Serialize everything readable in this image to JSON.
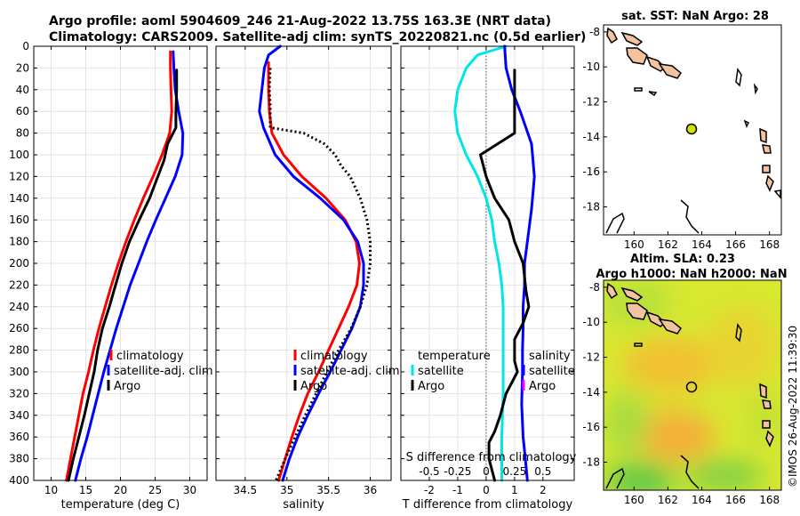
{
  "header": {
    "line1": "Argo profile: aoml 5904609_246 21-Aug-2022 13.75S 163.3E (NRT data)",
    "line2": "Climatology: CARS2009. Satellite-adj clim: synTS_20220821.nc (0.5d earlier)"
  },
  "colors": {
    "climatology": "#ff0000",
    "satellite": "#0000ff",
    "argo": "#000000",
    "temp_diff": "#00e5e5",
    "map_argo": "#d4e000"
  },
  "chart_data": [
    {
      "id": "temperature",
      "type": "line",
      "xlabel": "temperature (deg C)",
      "xlim": [
        7.5,
        32.5
      ],
      "xticks": [
        10,
        15,
        20,
        25,
        30
      ],
      "ylim": [
        0,
        400
      ],
      "yticks": [
        0,
        20,
        40,
        60,
        80,
        100,
        120,
        140,
        160,
        180,
        200,
        220,
        240,
        260,
        280,
        300,
        320,
        340,
        360,
        380,
        400
      ],
      "legend": [
        "climatology",
        "satellite-adj. clim",
        "Argo"
      ],
      "series": [
        {
          "name": "climatology",
          "color": "#ff0000",
          "dotted": false,
          "points": [
            [
              27.2,
              5
            ],
            [
              27.2,
              20
            ],
            [
              27.3,
              40
            ],
            [
              27.4,
              60
            ],
            [
              27.1,
              80
            ],
            [
              26.0,
              100
            ],
            [
              24.7,
              120
            ],
            [
              23.3,
              140
            ],
            [
              22.0,
              160
            ],
            [
              20.8,
              180
            ],
            [
              19.7,
              200
            ],
            [
              18.7,
              220
            ],
            [
              17.8,
              240
            ],
            [
              16.9,
              260
            ],
            [
              16.1,
              280
            ],
            [
              15.4,
              300
            ],
            [
              14.6,
              320
            ],
            [
              14.0,
              340
            ],
            [
              13.4,
              360
            ],
            [
              12.8,
              380
            ],
            [
              12.2,
              400
            ]
          ]
        },
        {
          "name": "satellite-adj. clim",
          "color": "#0000ff",
          "dotted": false,
          "points": [
            [
              27.6,
              5
            ],
            [
              27.7,
              20
            ],
            [
              27.9,
              40
            ],
            [
              28.4,
              60
            ],
            [
              29.0,
              80
            ],
            [
              28.9,
              100
            ],
            [
              27.9,
              120
            ],
            [
              26.5,
              140
            ],
            [
              25.1,
              160
            ],
            [
              23.8,
              180
            ],
            [
              22.6,
              200
            ],
            [
              21.4,
              220
            ],
            [
              20.4,
              240
            ],
            [
              19.4,
              260
            ],
            [
              18.5,
              280
            ],
            [
              17.6,
              300
            ],
            [
              16.8,
              320
            ],
            [
              16.0,
              340
            ],
            [
              15.2,
              360
            ],
            [
              14.3,
              380
            ],
            [
              13.5,
              400
            ]
          ]
        },
        {
          "name": "Argo",
          "color": "#000000",
          "dotted": false,
          "points": [
            [
              28.1,
              22
            ],
            [
              28.1,
              40
            ],
            [
              28.0,
              60
            ],
            [
              28.0,
              75
            ],
            [
              26.8,
              90
            ],
            [
              26.3,
              105
            ],
            [
              25.4,
              120
            ],
            [
              24.2,
              140
            ],
            [
              22.7,
              160
            ],
            [
              21.3,
              180
            ],
            [
              20.2,
              200
            ],
            [
              19.3,
              220
            ],
            [
              18.4,
              240
            ],
            [
              17.4,
              260
            ],
            [
              16.7,
              280
            ],
            [
              16.2,
              300
            ],
            [
              15.5,
              320
            ],
            [
              14.8,
              340
            ],
            [
              14.0,
              360
            ],
            [
              13.2,
              380
            ],
            [
              12.5,
              400
            ]
          ]
        }
      ]
    },
    {
      "id": "salinity",
      "type": "line",
      "xlabel": "salinity",
      "xlim": [
        34.15,
        36.25
      ],
      "xticks": [
        34.5,
        35,
        35.5,
        36
      ],
      "xtick_labels": [
        "34.5",
        "35",
        "35.5",
        "36"
      ],
      "ylim": [
        0,
        400
      ],
      "legend": [
        "climatology",
        "satellite-adj. clim",
        "Argo"
      ],
      "series": [
        {
          "name": "climatology",
          "color": "#ff0000",
          "dotted": false,
          "points": [
            [
              34.78,
              15
            ],
            [
              34.78,
              40
            ],
            [
              34.79,
              60
            ],
            [
              34.82,
              80
            ],
            [
              34.96,
              100
            ],
            [
              35.18,
              120
            ],
            [
              35.47,
              140
            ],
            [
              35.7,
              160
            ],
            [
              35.83,
              180
            ],
            [
              35.87,
              200
            ],
            [
              35.84,
              220
            ],
            [
              35.74,
              240
            ],
            [
              35.62,
              260
            ],
            [
              35.5,
              280
            ],
            [
              35.38,
              300
            ],
            [
              35.25,
              320
            ],
            [
              35.15,
              340
            ],
            [
              35.06,
              360
            ],
            [
              34.98,
              380
            ],
            [
              34.9,
              400
            ]
          ]
        },
        {
          "name": "satellite-adj. clim",
          "color": "#0000ff",
          "dotted": false,
          "points": [
            [
              34.92,
              0
            ],
            [
              34.78,
              8
            ],
            [
              34.73,
              20
            ],
            [
              34.7,
              40
            ],
            [
              34.67,
              60
            ],
            [
              34.72,
              75
            ],
            [
              34.86,
              100
            ],
            [
              35.08,
              120
            ],
            [
              35.4,
              140
            ],
            [
              35.68,
              160
            ],
            [
              35.85,
              180
            ],
            [
              35.92,
              200
            ],
            [
              35.92,
              220
            ],
            [
              35.88,
              240
            ],
            [
              35.78,
              260
            ],
            [
              35.65,
              280
            ],
            [
              35.52,
              300
            ],
            [
              35.38,
              320
            ],
            [
              35.25,
              340
            ],
            [
              35.13,
              360
            ],
            [
              35.03,
              380
            ],
            [
              34.95,
              400
            ]
          ]
        },
        {
          "name": "Argo",
          "color": "#000000",
          "dotted": true,
          "points": [
            [
              34.8,
              20
            ],
            [
              34.79,
              40
            ],
            [
              34.8,
              55
            ],
            [
              34.8,
              75
            ],
            [
              35.2,
              80
            ],
            [
              35.45,
              90
            ],
            [
              35.58,
              100
            ],
            [
              35.65,
              110
            ],
            [
              35.76,
              120
            ],
            [
              35.88,
              140
            ],
            [
              35.96,
              160
            ],
            [
              36.0,
              180
            ],
            [
              36.0,
              200
            ],
            [
              35.96,
              220
            ],
            [
              35.88,
              240
            ],
            [
              35.77,
              260
            ],
            [
              35.62,
              280
            ],
            [
              35.48,
              300
            ],
            [
              35.35,
              320
            ],
            [
              35.22,
              340
            ],
            [
              35.1,
              360
            ],
            [
              34.98,
              380
            ],
            [
              34.87,
              400
            ]
          ]
        }
      ]
    },
    {
      "id": "difference",
      "type": "line",
      "xlabel": "T difference from climatology",
      "top_label": "S difference from climatology",
      "xlim": [
        -3,
        3.1
      ],
      "xticks": [
        -2,
        -1,
        0,
        1,
        2
      ],
      "top_xticks": [
        -0.5,
        -0.25,
        0,
        0.25,
        0.5
      ],
      "top_xtick_labels": [
        "-0.5",
        "-0.25",
        "0",
        "0.25",
        "0.5"
      ],
      "ylim": [
        0,
        400
      ],
      "legend_temperature": [
        "temperature",
        "satellite",
        "Argo"
      ],
      "legend_salinity": [
        "salinity",
        "satellite",
        "Argo"
      ],
      "series": [
        {
          "name": "temperature satellite",
          "color": "#00e5e5",
          "dotted": false,
          "points": [
            [
              0.7,
              0
            ],
            [
              -0.3,
              8
            ],
            [
              -0.7,
              20
            ],
            [
              -1.0,
              40
            ],
            [
              -1.1,
              60
            ],
            [
              -1.0,
              80
            ],
            [
              -0.7,
              100
            ],
            [
              -0.3,
              120
            ],
            [
              0.0,
              140
            ],
            [
              0.2,
              160
            ],
            [
              0.3,
              180
            ],
            [
              0.45,
              200
            ],
            [
              0.55,
              220
            ],
            [
              0.6,
              240
            ],
            [
              0.6,
              280
            ],
            [
              0.6,
              320
            ],
            [
              0.55,
              360
            ],
            [
              0.55,
              400
            ]
          ]
        },
        {
          "name": "salinity satellite",
          "color": "#0000ff",
          "dotted": false,
          "points": [
            [
              0.65,
              0
            ],
            [
              0.7,
              20
            ],
            [
              0.9,
              40
            ],
            [
              1.2,
              60
            ],
            [
              1.6,
              90
            ],
            [
              1.7,
              120
            ],
            [
              1.6,
              150
            ],
            [
              1.45,
              180
            ],
            [
              1.35,
              200
            ],
            [
              1.35,
              220
            ],
            [
              1.3,
              240
            ],
            [
              1.3,
              260
            ],
            [
              1.28,
              280
            ],
            [
              1.28,
              300
            ],
            [
              1.25,
              330
            ],
            [
              1.3,
              360
            ],
            [
              1.38,
              380
            ],
            [
              1.45,
              400
            ]
          ]
        },
        {
          "name": "Argo",
          "color": "#000000",
          "dotted": false,
          "points": [
            [
              1.0,
              22
            ],
            [
              1.0,
              50
            ],
            [
              1.0,
              80
            ],
            [
              -0.2,
              100
            ],
            [
              0.0,
              120
            ],
            [
              0.3,
              140
            ],
            [
              0.8,
              160
            ],
            [
              1.0,
              180
            ],
            [
              1.3,
              200
            ],
            [
              1.4,
              225
            ],
            [
              1.5,
              240
            ],
            [
              1.3,
              255
            ],
            [
              1.0,
              270
            ],
            [
              1.0,
              290
            ],
            [
              1.1,
              300
            ],
            [
              0.7,
              320
            ],
            [
              0.5,
              340
            ],
            [
              0.3,
              355
            ],
            [
              0.1,
              365
            ],
            [
              0.1,
              380
            ],
            [
              0.3,
              400
            ]
          ]
        }
      ]
    }
  ],
  "maps": {
    "sst": {
      "title": "sat. SST: NaN Argo: 28",
      "xticks": [
        "160",
        "162",
        "164",
        "166",
        "168"
      ],
      "yticks": [
        "-8",
        "-10",
        "-12",
        "-14",
        "-16",
        "-18"
      ]
    },
    "sla": {
      "title_line1": "Altim. SLA: 0.23",
      "title_line2": "Argo h1000: NaN h2000: NaN",
      "xticks": [
        "160",
        "162",
        "164",
        "166",
        "168"
      ],
      "yticks": [
        "-8",
        "-10",
        "-12",
        "-14",
        "-16",
        "-18"
      ]
    }
  },
  "footer": {
    "copyright": "©IMOS 26-Aug-2022 11:39:30"
  }
}
